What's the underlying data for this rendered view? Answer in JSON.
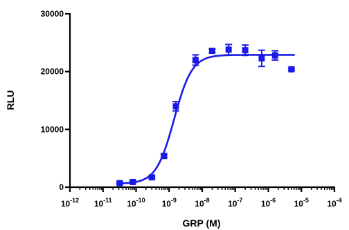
{
  "chart_data": {
    "type": "scatter",
    "title": "",
    "xlabel": "GRP (M)",
    "ylabel": "RLU",
    "xscale": "log",
    "xlim": [
      1e-12,
      0.0001
    ],
    "ylim": [
      0,
      30000
    ],
    "x_tick_labels": [
      {
        "value": 1e-12,
        "base": "10",
        "exp": "-12"
      },
      {
        "value": 1e-11,
        "base": "10",
        "exp": "-11"
      },
      {
        "value": 1e-10,
        "base": "10",
        "exp": "-10"
      },
      {
        "value": 1e-09,
        "base": "10",
        "exp": "-9"
      },
      {
        "value": 1e-08,
        "base": "10",
        "exp": "-8"
      },
      {
        "value": 1e-07,
        "base": "10",
        "exp": "-7"
      },
      {
        "value": 1e-06,
        "base": "10",
        "exp": "-6"
      },
      {
        "value": 1e-05,
        "base": "10",
        "exp": "-5"
      },
      {
        "value": 0.0001,
        "base": "10",
        "exp": "-4"
      }
    ],
    "y_tick_labels": [
      {
        "value": 0,
        "label": "0"
      },
      {
        "value": 10000,
        "label": "10000"
      },
      {
        "value": 20000,
        "label": "20000"
      },
      {
        "value": 30000,
        "label": "30000"
      }
    ],
    "grid": false,
    "color": "#1a1ae6",
    "series": [
      {
        "points": [
          {
            "x": 3.2e-11,
            "y": 700,
            "err": 150
          },
          {
            "x": 8e-11,
            "y": 900,
            "err": 150
          },
          {
            "x": 3e-10,
            "y": 1700,
            "err": 200
          },
          {
            "x": 7e-10,
            "y": 5400,
            "err": 300
          },
          {
            "x": 1.6e-09,
            "y": 14000,
            "err": 800
          },
          {
            "x": 6.3e-09,
            "y": 22000,
            "err": 900
          },
          {
            "x": 2e-08,
            "y": 23600,
            "err": 300
          },
          {
            "x": 6.3e-08,
            "y": 23800,
            "err": 900
          },
          {
            "x": 2e-07,
            "y": 23700,
            "err": 900
          },
          {
            "x": 6.3e-07,
            "y": 22300,
            "err": 1400
          },
          {
            "x": 1.6e-06,
            "y": 22800,
            "err": 800
          },
          {
            "x": 5e-06,
            "y": 20400,
            "err": 200
          }
        ],
        "fit": {
          "bottom": 600,
          "top": 22900,
          "log_ec50": -8.85,
          "hill_slope": 1.6
        }
      }
    ]
  }
}
